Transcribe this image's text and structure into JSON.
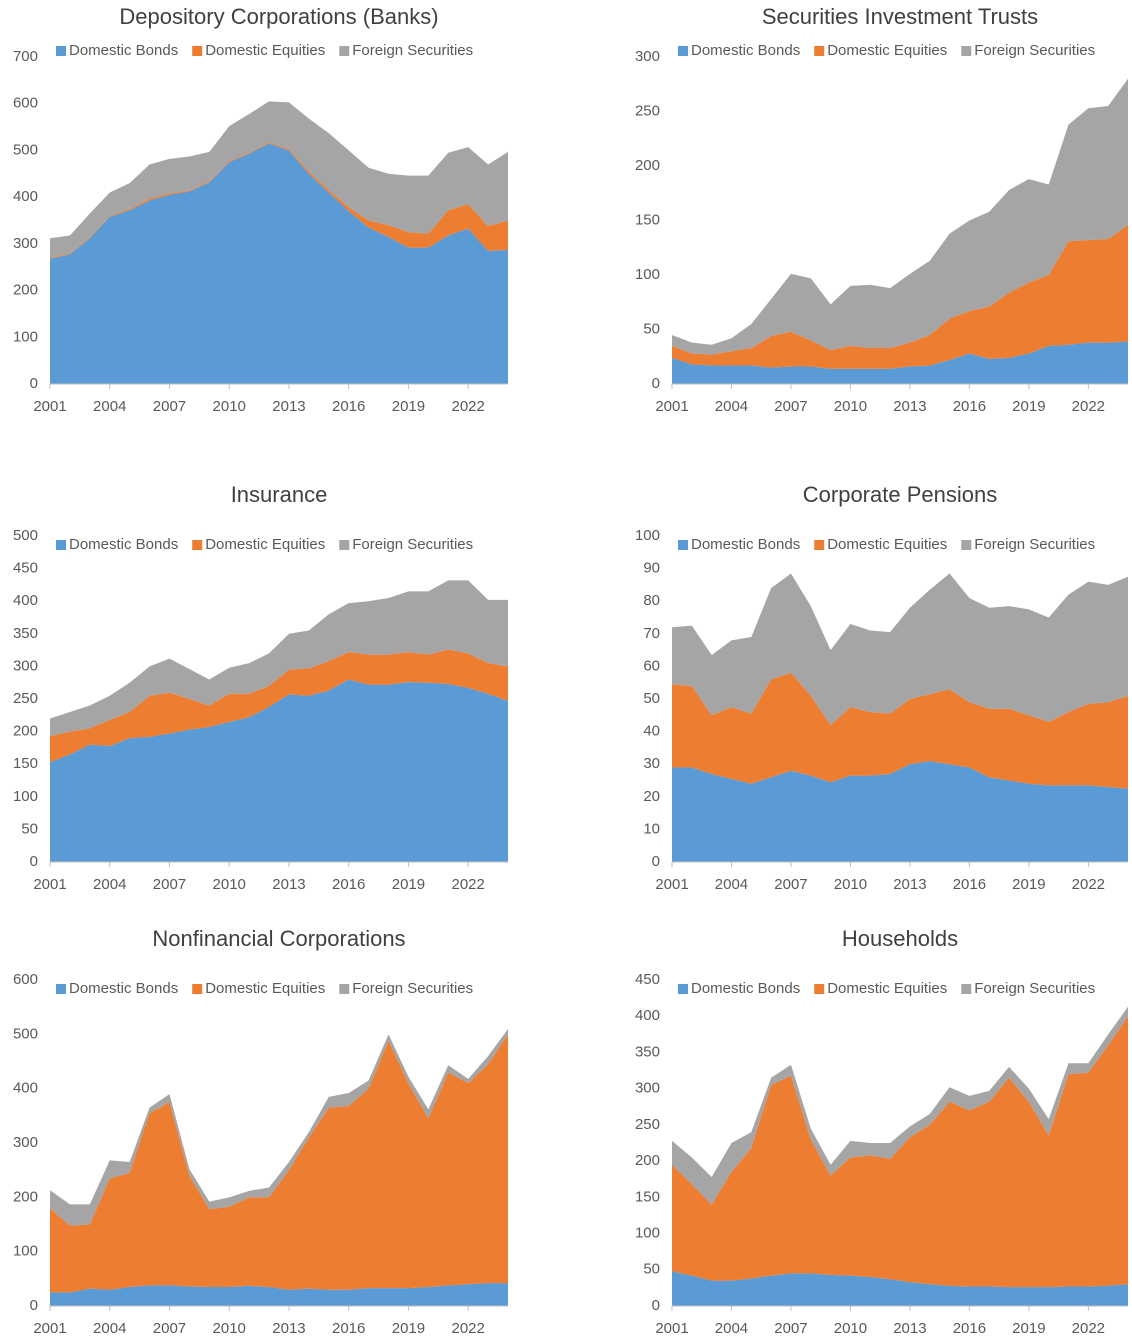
{
  "chart_data": [
    {
      "type": "area",
      "title": "Depository Corporations (Banks)",
      "stacked": true,
      "legend": "top",
      "x": [
        2001,
        2002,
        2003,
        2004,
        2005,
        2006,
        2007,
        2008,
        2009,
        2010,
        2011,
        2012,
        2013,
        2014,
        2015,
        2016,
        2017,
        2018,
        2019,
        2020,
        2021,
        2022,
        2023,
        2024
      ],
      "xlim": [
        2001,
        2024
      ],
      "xticks": [
        2001,
        2004,
        2007,
        2010,
        2013,
        2016,
        2019,
        2022
      ],
      "ylim": [
        0,
        700
      ],
      "yticks": [
        0,
        100,
        200,
        300,
        400,
        500,
        600,
        700
      ],
      "series": [
        {
          "name": "Domestic Bonds",
          "color": "#5b9bd5",
          "values": [
            268,
            278,
            312,
            358,
            372,
            393,
            405,
            412,
            432,
            475,
            493,
            515,
            500,
            450,
            410,
            370,
            335,
            315,
            292,
            292,
            318,
            333,
            285,
            287
          ]
        },
        {
          "name": "Domestic Equities",
          "color": "#ed7d31",
          "values": [
            2,
            2,
            2,
            2,
            3,
            4,
            3,
            2,
            2,
            2,
            2,
            2,
            3,
            5,
            5,
            8,
            15,
            25,
            33,
            30,
            54,
            52,
            53,
            63
          ]
        },
        {
          "name": "Foreign Securities",
          "color": "#a5a5a5",
          "values": [
            42,
            38,
            51,
            50,
            55,
            73,
            74,
            73,
            63,
            75,
            83,
            88,
            100,
            113,
            122,
            122,
            113,
            110,
            121,
            124,
            123,
            122,
            132,
            147
          ]
        }
      ]
    },
    {
      "type": "area",
      "title": "Securities Investment Trusts",
      "stacked": true,
      "legend": "top",
      "x": [
        2001,
        2002,
        2003,
        2004,
        2005,
        2006,
        2007,
        2008,
        2009,
        2010,
        2011,
        2012,
        2013,
        2014,
        2015,
        2016,
        2017,
        2018,
        2019,
        2020,
        2021,
        2022,
        2023,
        2024
      ],
      "xlim": [
        2001,
        2024
      ],
      "xticks": [
        2001,
        2004,
        2007,
        2010,
        2013,
        2016,
        2019,
        2022
      ],
      "ylim": [
        0,
        300
      ],
      "yticks": [
        0,
        50,
        100,
        150,
        200,
        250,
        300
      ],
      "series": [
        {
          "name": "Domestic Bonds",
          "color": "#5b9bd5",
          "values": [
            24,
            18,
            17,
            17,
            17,
            15,
            16,
            16,
            14,
            14,
            14,
            14,
            16,
            17,
            22,
            28,
            23,
            24,
            28,
            35,
            36,
            38,
            38,
            39
          ]
        },
        {
          "name": "Domestic Equities",
          "color": "#ed7d31",
          "values": [
            11,
            10,
            10,
            13,
            16,
            29,
            32,
            24,
            17,
            21,
            19,
            19,
            22,
            28,
            38,
            39,
            48,
            60,
            65,
            65,
            95,
            94,
            95,
            107
          ]
        },
        {
          "name": "Foreign Securities",
          "color": "#a5a5a5",
          "values": [
            10,
            10,
            9,
            12,
            22,
            34,
            53,
            57,
            42,
            55,
            58,
            55,
            63,
            68,
            78,
            83,
            87,
            94,
            95,
            83,
            107,
            121,
            122,
            134
          ]
        }
      ]
    },
    {
      "type": "area",
      "title": "Insurance",
      "stacked": true,
      "legend": "top",
      "x": [
        2001,
        2002,
        2003,
        2004,
        2005,
        2006,
        2007,
        2008,
        2009,
        2010,
        2011,
        2012,
        2013,
        2014,
        2015,
        2016,
        2017,
        2018,
        2019,
        2020,
        2021,
        2022,
        2023,
        2024
      ],
      "xlim": [
        2001,
        2024
      ],
      "xticks": [
        2001,
        2004,
        2007,
        2010,
        2013,
        2016,
        2019,
        2022
      ],
      "ylim": [
        0,
        500
      ],
      "yticks": [
        0,
        50,
        100,
        150,
        200,
        250,
        300,
        350,
        400,
        450,
        500
      ],
      "series": [
        {
          "name": "Domestic Bonds",
          "color": "#5b9bd5",
          "values": [
            153,
            165,
            180,
            178,
            190,
            192,
            197,
            203,
            207,
            215,
            222,
            238,
            257,
            255,
            263,
            280,
            272,
            272,
            276,
            275,
            273,
            267,
            258,
            247
          ]
        },
        {
          "name": "Domestic Equities",
          "color": "#ed7d31",
          "values": [
            40,
            35,
            25,
            40,
            40,
            63,
            63,
            47,
            33,
            43,
            36,
            32,
            38,
            42,
            45,
            42,
            46,
            46,
            46,
            43,
            53,
            53,
            47,
            53
          ]
        },
        {
          "name": "Foreign Securities",
          "color": "#a5a5a5",
          "values": [
            27,
            30,
            35,
            37,
            45,
            45,
            52,
            46,
            40,
            40,
            47,
            50,
            55,
            58,
            72,
            75,
            82,
            87,
            93,
            97,
            106,
            112,
            97,
            102
          ]
        }
      ]
    },
    {
      "type": "area",
      "title": "Corporate Pensions",
      "stacked": true,
      "legend": "top",
      "x": [
        2001,
        2002,
        2003,
        2004,
        2005,
        2006,
        2007,
        2008,
        2009,
        2010,
        2011,
        2012,
        2013,
        2014,
        2015,
        2016,
        2017,
        2018,
        2019,
        2020,
        2021,
        2022,
        2023,
        2024
      ],
      "xlim": [
        2001,
        2024
      ],
      "xticks": [
        2001,
        2004,
        2007,
        2010,
        2013,
        2016,
        2019,
        2022
      ],
      "ylim": [
        0,
        100
      ],
      "yticks": [
        0,
        10,
        20,
        30,
        40,
        50,
        60,
        70,
        80,
        90,
        100
      ],
      "series": [
        {
          "name": "Domestic Bonds",
          "color": "#5b9bd5",
          "values": [
            29,
            29,
            27,
            25.5,
            24,
            26,
            28,
            26.5,
            24.5,
            26.5,
            26.5,
            27,
            30,
            31,
            30,
            29,
            26,
            25,
            24,
            23.5,
            23.5,
            23.5,
            23,
            22.5
          ]
        },
        {
          "name": "Domestic Equities",
          "color": "#ed7d31",
          "values": [
            25.5,
            25,
            18,
            22,
            21.5,
            30,
            30,
            24.5,
            17.5,
            21,
            19.5,
            18.5,
            20,
            20.5,
            23,
            20,
            21,
            22,
            21,
            19.5,
            22.5,
            25,
            26,
            28.5
          ]
        },
        {
          "name": "Foreign Securities",
          "color": "#a5a5a5",
          "values": [
            17.5,
            18.5,
            18.5,
            20.5,
            23.5,
            28,
            30.5,
            27.5,
            23,
            25.5,
            25,
            25,
            28,
            32,
            35.5,
            32,
            31,
            31.5,
            32.5,
            32,
            36,
            37.5,
            36,
            36.5
          ]
        }
      ]
    },
    {
      "type": "area",
      "title": "Nonfinancial Corporations",
      "stacked": true,
      "legend": "top",
      "x": [
        2001,
        2002,
        2003,
        2004,
        2005,
        2006,
        2007,
        2008,
        2009,
        2010,
        2011,
        2012,
        2013,
        2014,
        2015,
        2016,
        2017,
        2018,
        2019,
        2020,
        2021,
        2022,
        2023,
        2024
      ],
      "xlim": [
        2001,
        2024
      ],
      "xticks": [
        2001,
        2004,
        2007,
        2010,
        2013,
        2016,
        2019,
        2022
      ],
      "ylim": [
        0,
        600
      ],
      "yticks": [
        0,
        100,
        200,
        300,
        400,
        500,
        600
      ],
      "series": [
        {
          "name": "Domestic Bonds",
          "color": "#5b9bd5",
          "values": [
            25,
            25,
            32,
            30,
            35,
            38,
            38,
            36,
            35,
            35,
            37,
            35,
            30,
            32,
            30,
            30,
            33,
            33,
            33,
            35,
            38,
            40,
            42,
            42
          ]
        },
        {
          "name": "Domestic Equities",
          "color": "#ed7d31",
          "values": [
            155,
            123,
            118,
            205,
            210,
            317,
            337,
            204,
            143,
            148,
            163,
            165,
            220,
            278,
            335,
            338,
            367,
            455,
            377,
            310,
            392,
            370,
            403,
            458
          ]
        },
        {
          "name": "Foreign Securities",
          "color": "#a5a5a5",
          "values": [
            33,
            39,
            37,
            33,
            20,
            10,
            15,
            12,
            14,
            17,
            12,
            18,
            15,
            10,
            20,
            24,
            15,
            12,
            12,
            17,
            13,
            8,
            15,
            10
          ]
        }
      ]
    },
    {
      "type": "area",
      "title": "Households",
      "stacked": true,
      "legend": "top",
      "x": [
        2001,
        2002,
        2003,
        2004,
        2005,
        2006,
        2007,
        2008,
        2009,
        2010,
        2011,
        2012,
        2013,
        2014,
        2015,
        2016,
        2017,
        2018,
        2019,
        2020,
        2021,
        2022,
        2023,
        2024
      ],
      "xlim": [
        2001,
        2024
      ],
      "xticks": [
        2001,
        2004,
        2007,
        2010,
        2013,
        2016,
        2019,
        2022
      ],
      "ylim": [
        0,
        450
      ],
      "yticks": [
        0,
        50,
        100,
        150,
        200,
        250,
        300,
        350,
        400,
        450
      ],
      "series": [
        {
          "name": "Domestic Bonds",
          "color": "#5b9bd5",
          "values": [
            48,
            42,
            35,
            35,
            38,
            42,
            45,
            45,
            43,
            42,
            40,
            37,
            33,
            30,
            28,
            27,
            27,
            26,
            26,
            26,
            27,
            27,
            28,
            30
          ]
        },
        {
          "name": "Domestic Equities",
          "color": "#ed7d31",
          "values": [
            147,
            126,
            105,
            150,
            180,
            263,
            273,
            185,
            137,
            163,
            168,
            166,
            200,
            220,
            254,
            243,
            255,
            289,
            256,
            209,
            293,
            295,
            332,
            370
          ]
        },
        {
          "name": "Foreign Securities",
          "color": "#a5a5a5",
          "values": [
            33,
            37,
            38,
            40,
            22,
            10,
            15,
            15,
            15,
            23,
            17,
            22,
            15,
            15,
            20,
            20,
            15,
            15,
            18,
            23,
            15,
            13,
            15,
            13
          ]
        }
      ]
    }
  ]
}
